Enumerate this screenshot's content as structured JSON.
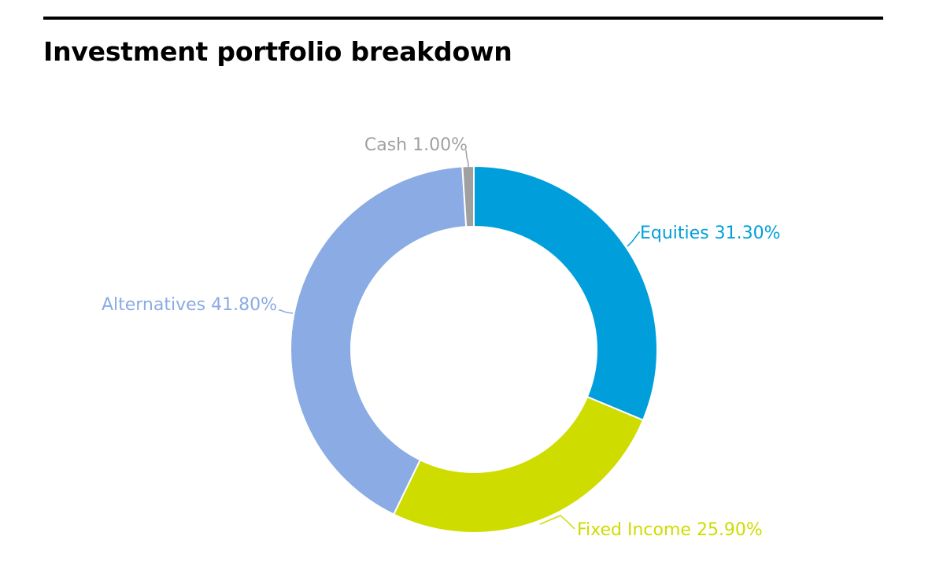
{
  "chart_data": {
    "type": "pie",
    "style": "donut",
    "title": "Investment portfolio breakdown",
    "labels": [
      "Equities 31.30%",
      "Fixed Income 25.90%",
      "Alternatives 41.80%",
      "Cash 1.00%"
    ],
    "slices": [
      {
        "name": "Equities",
        "value": 31.3,
        "color": "#009FDB"
      },
      {
        "name": "Fixed Income",
        "value": 25.9,
        "color": "#CEDC00"
      },
      {
        "name": "Alternatives",
        "value": 41.8,
        "color": "#8AABE3"
      },
      {
        "name": "Cash",
        "value": 1.0,
        "color": "#A0A0A0"
      }
    ],
    "legend": "none",
    "grid": false
  }
}
